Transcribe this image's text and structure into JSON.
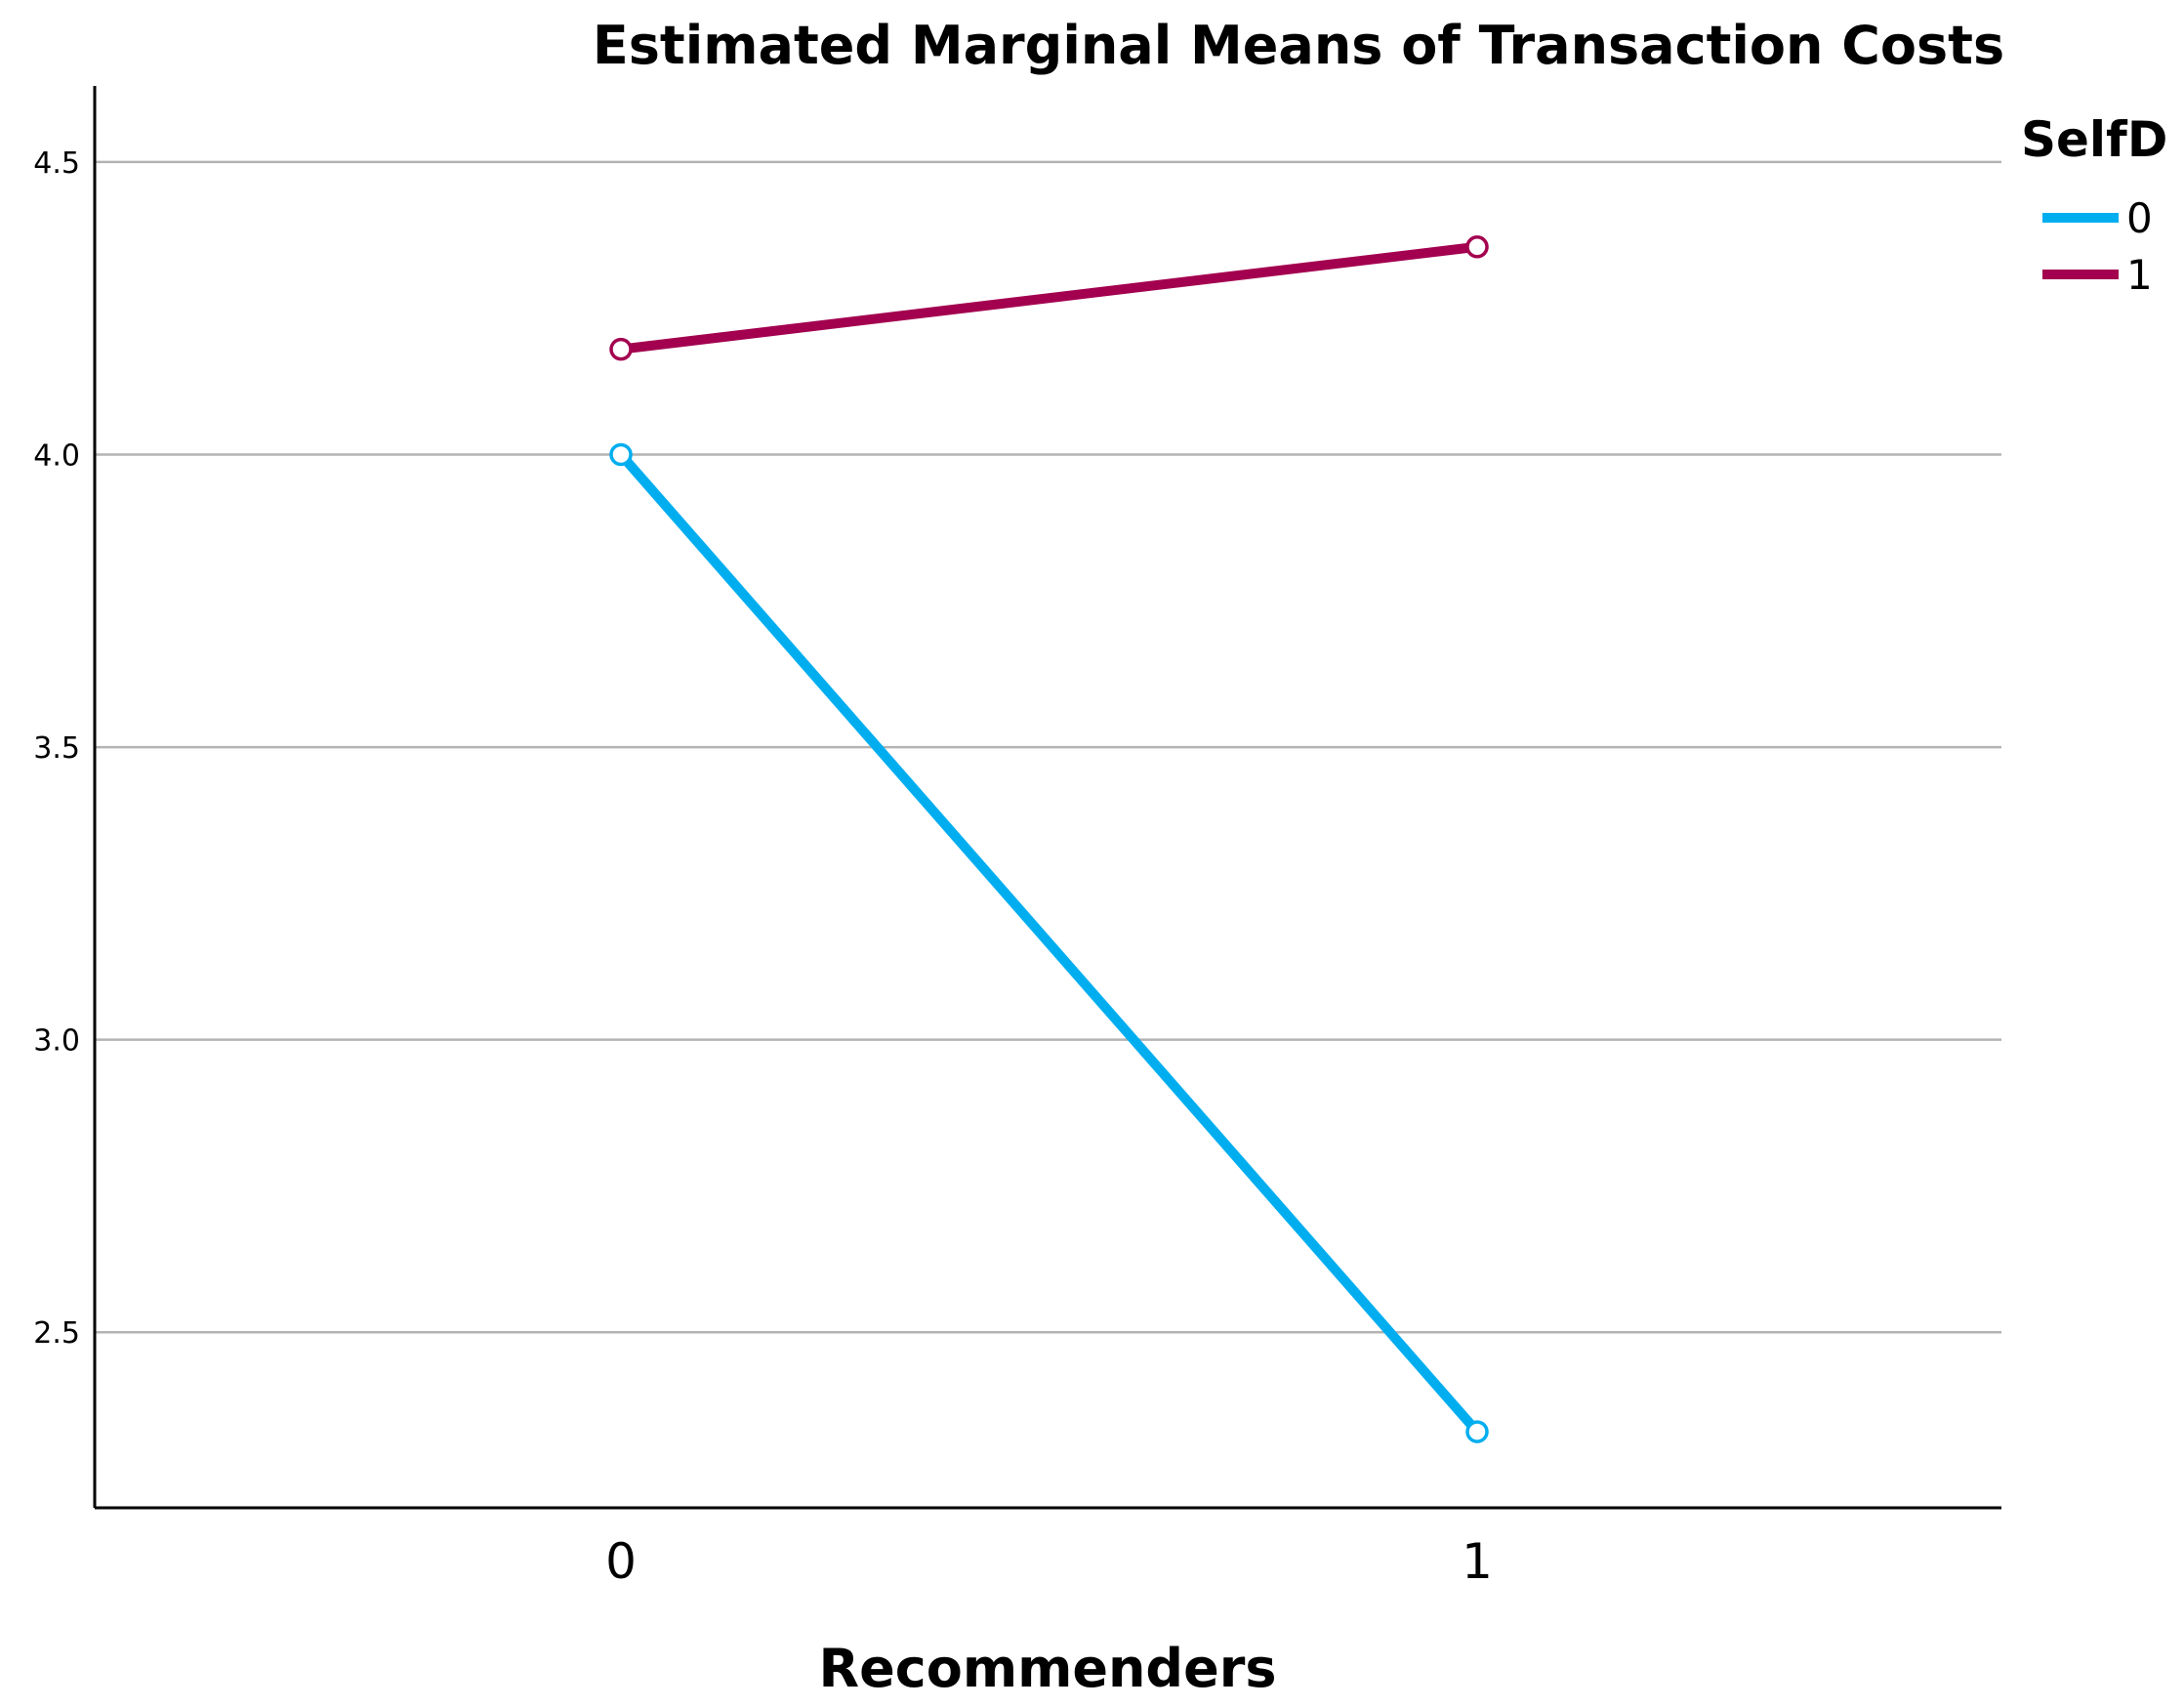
{
  "chart_data": {
    "type": "line",
    "title": "Estimated Marginal Means of Transaction Costs",
    "xlabel": "Recommenders",
    "ylabel": "",
    "categories": [
      "0",
      "1"
    ],
    "y_ticks": [
      "2.5",
      "3.0",
      "3.5",
      "4.0",
      "4.5"
    ],
    "ylim": [
      2.2,
      4.63
    ],
    "grid": true,
    "legend": {
      "title": "SelfD",
      "placement": "top-right"
    },
    "series": [
      {
        "name": "0",
        "color": "#00aeef",
        "values": [
          4.0,
          2.33
        ]
      },
      {
        "name": "1",
        "color": "#a3004f",
        "values": [
          4.18,
          4.355
        ]
      }
    ]
  }
}
